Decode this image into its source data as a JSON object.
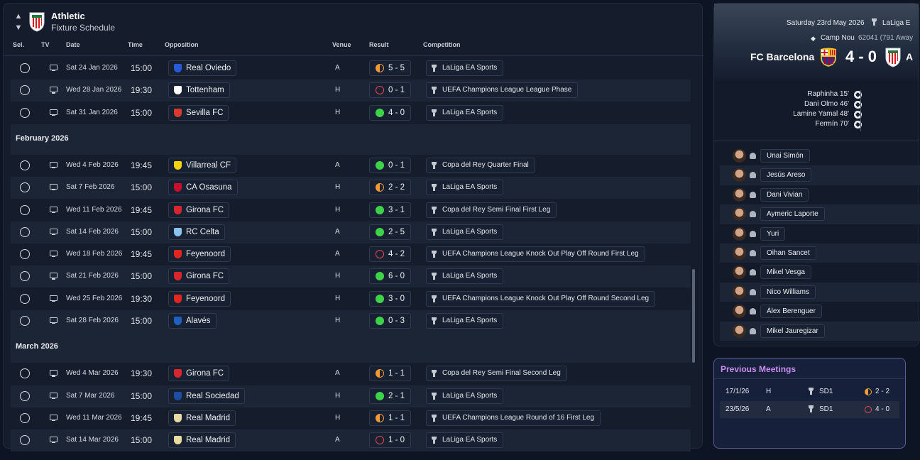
{
  "header": {
    "club_name": "Athletic",
    "subtitle": "Fixture Schedule"
  },
  "columns": {
    "sel": "Sel.",
    "tv": "TV",
    "date": "Date",
    "time": "Time",
    "opposition": "Opposition",
    "venue": "Venue",
    "result": "Result",
    "competition": "Competition"
  },
  "schedule": [
    {
      "type": "fixture",
      "date": "Sat 24 Jan 2026",
      "time": "15:00",
      "opposition": "Real Oviedo",
      "badge_color": "#2a5bd7",
      "venue": "A",
      "result": "5 - 5",
      "outcome": "draw",
      "competition": "LaLiga EA Sports"
    },
    {
      "type": "fixture",
      "date": "Wed 28 Jan 2026",
      "time": "19:30",
      "opposition": "Tottenham",
      "badge_color": "#ffffff",
      "venue": "H",
      "result": "0 - 1",
      "outcome": "loss",
      "competition": "UEFA Champions League League Phase"
    },
    {
      "type": "fixture",
      "date": "Sat 31 Jan 2026",
      "time": "15:00",
      "opposition": "Sevilla FC",
      "badge_color": "#d93a2e",
      "venue": "H",
      "result": "4 - 0",
      "outcome": "win",
      "competition": "LaLiga EA Sports"
    },
    {
      "type": "month",
      "label": "February 2026"
    },
    {
      "type": "fixture",
      "date": "Wed 4 Feb 2026",
      "time": "19:45",
      "opposition": "Villarreal CF",
      "badge_color": "#f5d20b",
      "venue": "A",
      "result": "0 - 1",
      "outcome": "win",
      "competition": "Copa del Rey Quarter Final"
    },
    {
      "type": "fixture",
      "date": "Sat 7 Feb 2026",
      "time": "15:00",
      "opposition": "CA Osasuna",
      "badge_color": "#c8102e",
      "venue": "H",
      "result": "2 - 2",
      "outcome": "draw",
      "competition": "LaLiga EA Sports"
    },
    {
      "type": "fixture",
      "date": "Wed 11 Feb 2026",
      "time": "19:45",
      "opposition": "Girona FC",
      "badge_color": "#d8262e",
      "venue": "H",
      "result": "3 - 1",
      "outcome": "win",
      "competition": "Copa del Rey Semi Final First Leg"
    },
    {
      "type": "fixture",
      "date": "Sat 14 Feb 2026",
      "time": "15:00",
      "opposition": "RC Celta",
      "badge_color": "#8ac4ee",
      "venue": "A",
      "result": "2 - 5",
      "outcome": "win",
      "competition": "LaLiga EA Sports"
    },
    {
      "type": "fixture",
      "date": "Wed 18 Feb 2026",
      "time": "19:45",
      "opposition": "Feyenoord",
      "badge_color": "#e32521",
      "venue": "A",
      "result": "4 - 2",
      "outcome": "loss",
      "competition": "UEFA Champions League Knock Out Play Off Round First Leg"
    },
    {
      "type": "fixture",
      "date": "Sat 21 Feb 2026",
      "time": "15:00",
      "opposition": "Girona FC",
      "badge_color": "#d8262e",
      "venue": "H",
      "result": "6 - 0",
      "outcome": "win",
      "competition": "LaLiga EA Sports"
    },
    {
      "type": "fixture",
      "date": "Wed 25 Feb 2026",
      "time": "19:30",
      "opposition": "Feyenoord",
      "badge_color": "#e32521",
      "venue": "H",
      "result": "3 - 0",
      "outcome": "win",
      "competition": "UEFA Champions League Knock Out Play Off Round Second Leg"
    },
    {
      "type": "fixture",
      "date": "Sat 28 Feb 2026",
      "time": "15:00",
      "opposition": "Alavés",
      "badge_color": "#1f5fbf",
      "venue": "H",
      "result": "0 - 3",
      "outcome": "win",
      "competition": "LaLiga EA Sports"
    },
    {
      "type": "month",
      "label": "March 2026"
    },
    {
      "type": "fixture",
      "date": "Wed 4 Mar 2026",
      "time": "19:30",
      "opposition": "Girona FC",
      "badge_color": "#d8262e",
      "venue": "A",
      "result": "1 - 1",
      "outcome": "draw",
      "competition": "Copa del Rey Semi Final Second Leg"
    },
    {
      "type": "fixture",
      "date": "Sat 7 Mar 2026",
      "time": "15:00",
      "opposition": "Real Sociedad",
      "badge_color": "#1d4da3",
      "venue": "H",
      "result": "2 - 1",
      "outcome": "win",
      "competition": "LaLiga EA Sports"
    },
    {
      "type": "fixture",
      "date": "Wed 11 Mar 2026",
      "time": "19:45",
      "opposition": "Real Madrid",
      "badge_color": "#e9d9a4",
      "venue": "H",
      "result": "1 - 1",
      "outcome": "draw",
      "competition": "UEFA Champions League Round of 16  First Leg"
    },
    {
      "type": "fixture",
      "date": "Sat 14 Mar 2026",
      "time": "15:00",
      "opposition": "Real Madrid",
      "badge_color": "#e9d9a4",
      "venue": "A",
      "result": "1 - 0",
      "outcome": "loss",
      "competition": "LaLiga EA Sports"
    }
  ],
  "match": {
    "date": "Saturday 23rd May 2026",
    "competition": "LaLiga E",
    "venue": "Camp Nou",
    "attendance": "62041 (791 Away",
    "home_team": "FC Barcelona",
    "score": "4 - 0",
    "away_initial": "A",
    "scorers": [
      "Raphinha 15'",
      "Dani Olmo 46'",
      "Lamine Yamal 48'",
      "Fermín 70'"
    ],
    "lineup": [
      "Unai Simón",
      "Jesús Areso",
      "Dani Vivian",
      "Aymeric Laporte",
      "Yuri",
      "Oihan Sancet",
      "Mikel Vesga",
      "Nico Williams",
      "Álex Berenguer",
      "Mikel Jauregizar"
    ]
  },
  "previous_meetings": {
    "title": "Previous Meetings",
    "rows": [
      {
        "date": "17/1/26",
        "venue": "H",
        "competition": "SD1",
        "result": "2 - 2",
        "outcome": "draw"
      },
      {
        "date": "23/5/26",
        "venue": "A",
        "competition": "SD1",
        "result": "4 - 0",
        "outcome": "loss"
      }
    ]
  },
  "colors": {
    "win": "#3fd14a",
    "loss": "#e5484d",
    "draw": "#f29a38",
    "accent": "#c98cf0"
  }
}
